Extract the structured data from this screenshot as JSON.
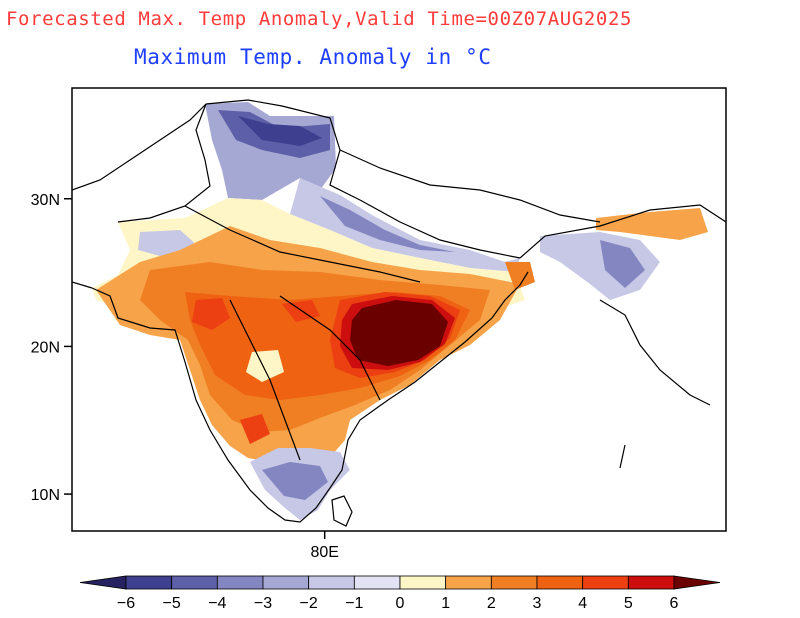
{
  "header": {
    "title": "Forecasted Max. Temp Anomaly,Valid Time=00Z07AUG2025",
    "subtitle": "Maximum Temp. Anomaly in °C"
  },
  "axes": {
    "y_ticks": [
      {
        "lat": 30,
        "label": "30N"
      },
      {
        "lat": 20,
        "label": "20N"
      },
      {
        "lat": 10,
        "label": "10N"
      }
    ],
    "x_ticks": [
      {
        "lon": 80,
        "label": "80E"
      }
    ],
    "lon_range": [
      63,
      107
    ],
    "lat_range": [
      7.5,
      37.5
    ]
  },
  "colorbar": {
    "labels": [
      "−6",
      "−5",
      "−4",
      "−3",
      "−2",
      "−1",
      "0",
      "1",
      "2",
      "3",
      "4",
      "5",
      "6"
    ],
    "colors": [
      "#262262",
      "#3f3f8f",
      "#5d5fa8",
      "#8486c2",
      "#a6a8d4",
      "#c7c8e6",
      "#e2e2f4",
      "#fff6c8",
      "#f6a34a",
      "#f07f23",
      "#ee6211",
      "#ec3f12",
      "#cc0e0e",
      "#6b0000"
    ]
  },
  "palette": {
    "cold_strong": "#3f3f8f",
    "cold_mid": "#8486c2",
    "cold_light": "#c7c8e6",
    "neutral": "#fff6c8",
    "warm_light": "#f6a34a",
    "warm_mid": "#f07f23",
    "warm_strong": "#ec3f12",
    "extreme": "#6b0000"
  }
}
